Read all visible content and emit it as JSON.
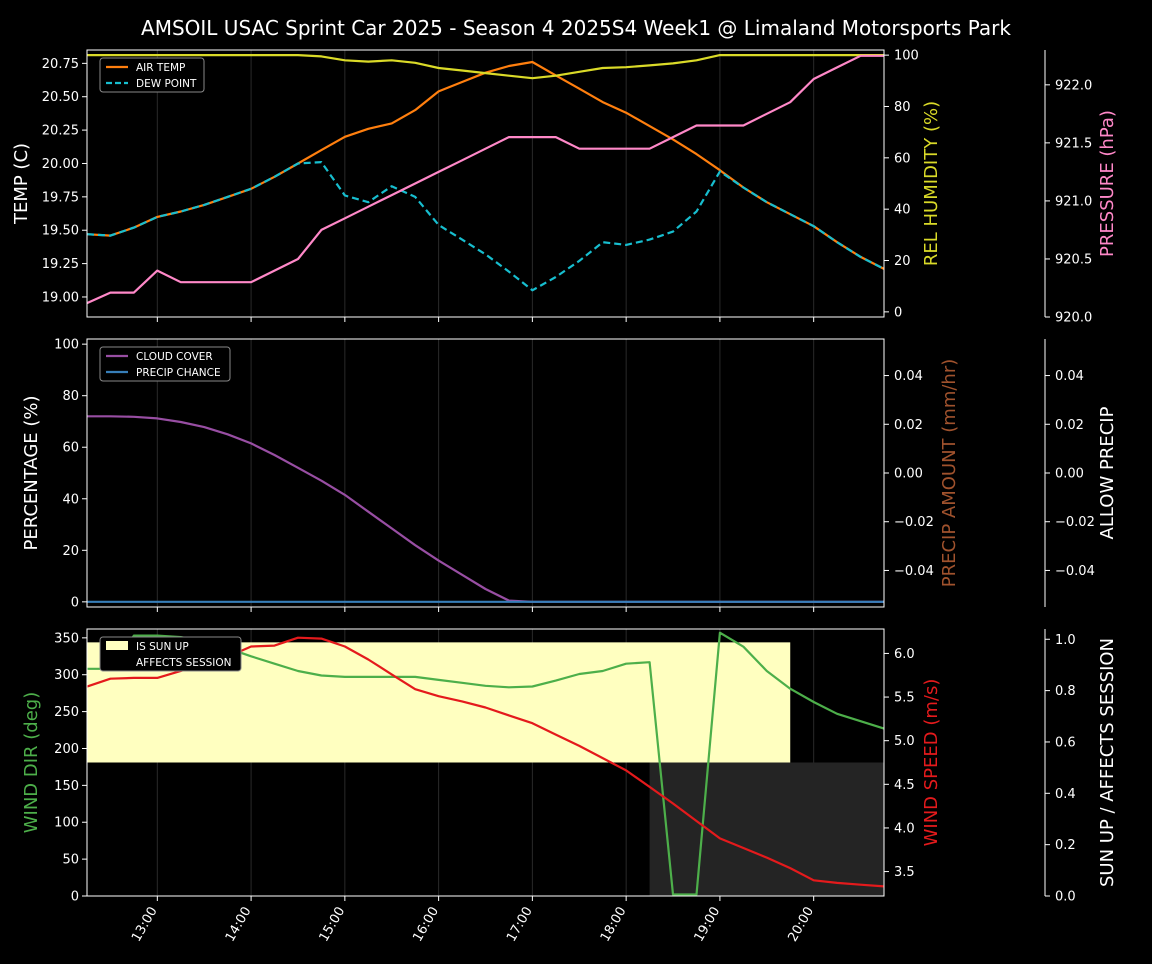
{
  "chart_data": {
    "title": "AMSOIL USAC Sprint Car 2025 - Season 4 2025S4 Week1 @ Limaland Motorsports Park",
    "x_tick_labels": [
      "13:00",
      "14:00",
      "15:00",
      "16:00",
      "17:00",
      "18:00",
      "19:00",
      "20:00"
    ],
    "x_range": [
      "12:15",
      "20:45"
    ],
    "panels": [
      {
        "type": "line",
        "left_axis": {
          "label": "TEMP (C)",
          "range": [
            18.85,
            20.85
          ],
          "ticks": [
            "19.00",
            "19.25",
            "19.50",
            "19.75",
            "20.00",
            "20.25",
            "20.50",
            "20.75"
          ],
          "color": "#ffffff"
        },
        "right_axis_1": {
          "label": "REL HUMIDITY (%)",
          "range": [
            -2,
            102
          ],
          "ticks": [
            "0",
            "20",
            "40",
            "60",
            "80",
            "100"
          ],
          "color": "#dada28"
        },
        "right_axis_2": {
          "label": "PRESSURE (hPa)",
          "range": [
            920.0,
            922.3
          ],
          "ticks": [
            "920.0",
            "920.5",
            "921.0",
            "921.5",
            "922.0"
          ],
          "color": "#ff88c8"
        },
        "legend": [
          "AIR TEMP",
          "DEW POINT"
        ],
        "legend_position": "top-left",
        "series": [
          {
            "name": "AIR TEMP",
            "axis": "left",
            "color": "#ff7f0e",
            "dash": "solid",
            "x": [
              "12:15",
              "12:30",
              "12:45",
              "13:00",
              "13:15",
              "13:30",
              "13:45",
              "14:00",
              "14:15",
              "14:30",
              "14:45",
              "15:00",
              "15:15",
              "15:30",
              "15:45",
              "16:00",
              "16:15",
              "16:30",
              "16:45",
              "17:00",
              "17:15",
              "17:30",
              "17:45",
              "18:00",
              "18:15",
              "18:30",
              "18:45",
              "19:00",
              "19:15",
              "19:30",
              "19:45",
              "20:00",
              "20:15",
              "20:30",
              "20:45"
            ],
            "y": [
              19.47,
              19.46,
              19.52,
              19.6,
              19.64,
              19.69,
              19.75,
              19.81,
              19.9,
              20.0,
              20.1,
              20.2,
              20.26,
              20.3,
              20.4,
              20.54,
              20.61,
              20.68,
              20.73,
              20.76,
              20.66,
              20.56,
              20.46,
              20.38,
              20.28,
              20.18,
              20.07,
              19.95,
              19.82,
              19.71,
              19.62,
              19.53,
              19.41,
              19.3,
              19.21
            ]
          },
          {
            "name": "DEW POINT",
            "axis": "left",
            "color": "#17becf",
            "dash": "dashed",
            "x": [
              "12:15",
              "12:30",
              "12:45",
              "13:00",
              "13:15",
              "13:30",
              "13:45",
              "14:00",
              "14:15",
              "14:30",
              "14:45",
              "15:00",
              "15:15",
              "15:30",
              "15:45",
              "16:00",
              "16:15",
              "16:30",
              "16:45",
              "17:00",
              "17:15",
              "17:30",
              "17:45",
              "18:00",
              "18:15",
              "18:30",
              "18:45",
              "19:00",
              "19:15",
              "19:30",
              "19:45",
              "20:00",
              "20:15",
              "20:30",
              "20:45"
            ],
            "y": [
              19.47,
              19.46,
              19.52,
              19.6,
              19.64,
              19.69,
              19.75,
              19.81,
              19.9,
              20.0,
              20.01,
              19.76,
              19.71,
              19.83,
              19.75,
              19.54,
              19.43,
              19.32,
              19.19,
              19.05,
              19.15,
              19.27,
              19.41,
              19.39,
              19.43,
              19.49,
              19.64,
              19.94,
              19.82,
              19.71,
              19.62,
              19.53,
              19.41,
              19.3,
              19.21
            ]
          },
          {
            "name": "REL HUMIDITY",
            "axis": "right1",
            "color": "#dada28",
            "dash": "solid",
            "x": [
              "12:15",
              "12:30",
              "12:45",
              "13:00",
              "13:15",
              "13:30",
              "13:45",
              "14:00",
              "14:15",
              "14:30",
              "14:45",
              "15:00",
              "15:15",
              "15:30",
              "15:45",
              "16:00",
              "16:15",
              "16:30",
              "16:45",
              "17:00",
              "17:15",
              "17:30",
              "17:45",
              "18:00",
              "18:15",
              "18:30",
              "18:45",
              "19:00",
              "19:15",
              "19:30",
              "19:45",
              "20:00",
              "20:15",
              "20:30",
              "20:45"
            ],
            "y": [
              100,
              100,
              100,
              100,
              100,
              100,
              100,
              100,
              100,
              100,
              99.5,
              98,
              97.5,
              98,
              97,
              95,
              94,
              93,
              92,
              91,
              92,
              93.5,
              95,
              95.3,
              96,
              96.8,
              98,
              100,
              100,
              100,
              100,
              100,
              100,
              100,
              100
            ]
          },
          {
            "name": "PRESSURE",
            "axis": "right2",
            "color": "#ff88c8",
            "dash": "solid",
            "x": [
              "12:15",
              "12:30",
              "12:45",
              "13:00",
              "13:15",
              "13:30",
              "13:45",
              "14:00",
              "14:15",
              "14:30",
              "14:45",
              "15:00",
              "15:15",
              "15:30",
              "15:45",
              "16:00",
              "16:15",
              "16:30",
              "16:45",
              "17:00",
              "17:15",
              "17:30",
              "17:45",
              "18:00",
              "18:15",
              "18:30",
              "18:45",
              "19:00",
              "19:15",
              "19:30",
              "19:45",
              "20:00",
              "20:15",
              "20:30",
              "20:45"
            ],
            "y": [
              920.12,
              920.21,
              920.21,
              920.4,
              920.3,
              920.3,
              920.3,
              920.3,
              920.4,
              920.5,
              920.75,
              920.85,
              920.95,
              921.05,
              921.15,
              921.25,
              921.35,
              921.45,
              921.55,
              921.55,
              921.55,
              921.45,
              921.45,
              921.45,
              921.45,
              921.55,
              921.65,
              921.65,
              921.65,
              921.75,
              921.85,
              922.05,
              922.15,
              922.25,
              922.25
            ]
          }
        ]
      },
      {
        "type": "line",
        "left_axis": {
          "label": "PERCENTAGE (%)",
          "range": [
            -2,
            102
          ],
          "ticks": [
            "0",
            "20",
            "40",
            "60",
            "80",
            "100"
          ],
          "color": "#ffffff"
        },
        "right_axis_1": {
          "label": "PRECIP AMOUNT (mm/hr)",
          "range": [
            -0.055,
            0.055
          ],
          "ticks": [
            "−0.04",
            "−0.02",
            "0.00",
            "0.02",
            "0.04"
          ],
          "color": "#a0522d"
        },
        "right_axis_2": {
          "label": "ALLOW PRECIP",
          "range": [
            -0.055,
            0.055
          ],
          "ticks": [
            "−0.04",
            "−0.02",
            "0.00",
            "0.02",
            "0.04"
          ],
          "color": "#ffffff"
        },
        "legend": [
          "CLOUD COVER",
          "PRECIP CHANCE"
        ],
        "legend_position": "top-left",
        "series": [
          {
            "name": "CLOUD COVER",
            "axis": "left",
            "color": "#984ea3",
            "dash": "solid",
            "x": [
              "12:15",
              "12:30",
              "12:45",
              "13:00",
              "13:15",
              "13:30",
              "13:45",
              "14:00",
              "14:15",
              "14:30",
              "14:45",
              "15:00",
              "15:15",
              "15:30",
              "15:45",
              "16:00",
              "16:15",
              "16:30",
              "16:45",
              "17:00",
              "17:15",
              "17:30",
              "17:45",
              "18:00",
              "18:15",
              "18:30",
              "18:45",
              "19:00",
              "19:15",
              "19:30",
              "19:45",
              "20:00",
              "20:15",
              "20:30",
              "20:45"
            ],
            "y": [
              72,
              72,
              71.8,
              71.2,
              69.8,
              67.8,
              65,
              61.5,
              57,
              52,
              47,
              41.5,
              35,
              28.5,
              22,
              16,
              10.5,
              5,
              0.5,
              0,
              0,
              0,
              0,
              0,
              0,
              0,
              0,
              0,
              0,
              0,
              0,
              0,
              0,
              0,
              0
            ]
          },
          {
            "name": "PRECIP CHANCE",
            "axis": "left",
            "color": "#377eb8",
            "dash": "solid",
            "x": [
              "12:15",
              "20:45"
            ],
            "y": [
              0,
              0
            ]
          }
        ]
      },
      {
        "type": "line",
        "left_axis": {
          "label": "WIND DIR (deg)",
          "range": [
            0,
            362
          ],
          "ticks": [
            "0",
            "50",
            "100",
            "150",
            "200",
            "250",
            "300",
            "350"
          ],
          "color": "#4daf4a"
        },
        "right_axis_1": {
          "label": "WIND SPEED (m/s)",
          "range": [
            3.22,
            6.28
          ],
          "ticks": [
            "3.5",
            "4.0",
            "4.5",
            "5.0",
            "5.5",
            "6.0"
          ],
          "color": "#e41a1c"
        },
        "right_axis_2": {
          "label": "SUN UP / AFFECTS SESSION",
          "range": [
            0,
            1.04
          ],
          "ticks": [
            "0.0",
            "0.2",
            "0.4",
            "0.6",
            "0.8",
            "1.0"
          ],
          "color": "#ffffff"
        },
        "legend": [
          "IS SUN UP",
          "AFFECTS SESSION"
        ],
        "legend_position": "top-left",
        "bands": [
          {
            "name": "IS SUN UP",
            "color": "#ffffc0",
            "x_start": "12:15",
            "x_end": "19:45",
            "y_from": 0.5,
            "y_to": 0.95
          },
          {
            "name": "AFFECTS SESSION",
            "color": "#242424",
            "x_start": "18:15",
            "x_end": "20:45",
            "y_from": 0,
            "y_to": 0.5
          }
        ],
        "series": [
          {
            "name": "WIND DIR",
            "axis": "left",
            "color": "#4daf4a",
            "dash": "solid",
            "x": [
              "12:15",
              "12:30",
              "12:45",
              "13:00",
              "13:15",
              "13:30",
              "13:45",
              "14:00",
              "14:15",
              "14:30",
              "14:45",
              "15:00",
              "15:15",
              "15:30",
              "15:45",
              "16:00",
              "16:15",
              "16:30",
              "16:45",
              "17:00",
              "17:15",
              "17:30",
              "17:45",
              "18:00",
              "18:15",
              "18:30",
              "18:45",
              "19:00",
              "19:15",
              "19:30",
              "19:45",
              "20:00",
              "20:15",
              "20:30",
              "20:45"
            ],
            "y": [
              308,
              308,
              353,
              353,
              351,
              345,
              336,
              325,
              315,
              305,
              299,
              297,
              297,
              297,
              297,
              293,
              289,
              285,
              283,
              284,
              292,
              301,
              305,
              315,
              317,
              2,
              2,
              357,
              338,
              305,
              281,
              263,
              247,
              237,
              227
            ]
          },
          {
            "name": "WIND SPEED",
            "axis": "right1",
            "color": "#e41a1c",
            "dash": "solid",
            "x": [
              "12:15",
              "12:30",
              "12:45",
              "13:00",
              "13:15",
              "13:30",
              "13:45",
              "14:00",
              "14:15",
              "14:30",
              "14:45",
              "15:00",
              "15:15",
              "15:30",
              "15:45",
              "16:00",
              "16:15",
              "16:30",
              "16:45",
              "17:00",
              "17:15",
              "17:30",
              "17:45",
              "18:00",
              "18:15",
              "18:30",
              "18:45",
              "19:00",
              "19:15",
              "19:30",
              "19:45",
              "20:00",
              "20:15",
              "20:30",
              "20:45"
            ],
            "y": [
              5.62,
              5.71,
              5.72,
              5.72,
              5.8,
              5.88,
              5.96,
              6.08,
              6.09,
              6.18,
              6.17,
              6.08,
              5.93,
              5.76,
              5.59,
              5.51,
              5.45,
              5.38,
              5.29,
              5.2,
              5.07,
              4.94,
              4.8,
              4.66,
              4.47,
              4.28,
              4.08,
              3.88,
              3.77,
              3.66,
              3.54,
              3.4,
              3.37,
              3.35,
              3.33
            ]
          }
        ]
      }
    ]
  }
}
